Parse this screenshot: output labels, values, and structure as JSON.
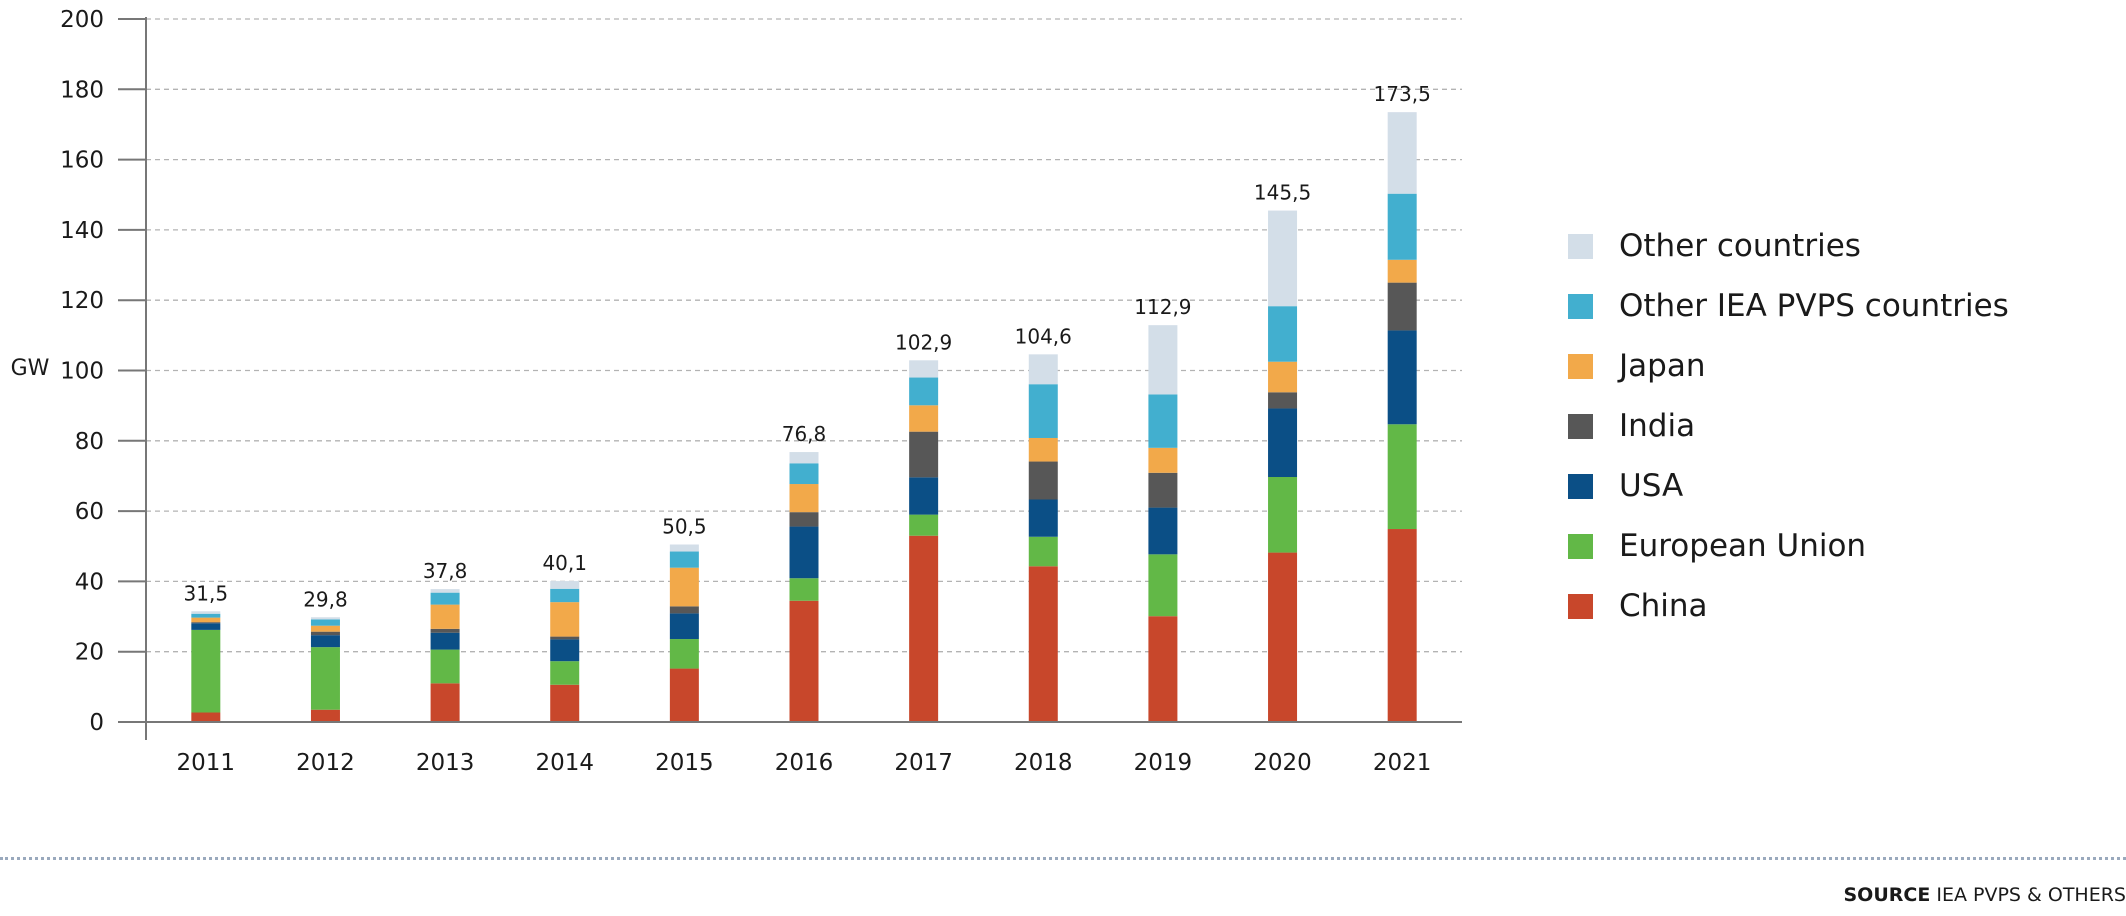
{
  "footer": {
    "source_key": "SOURCE",
    "source_value": "IEA PVPS & OTHERS"
  },
  "chart_data": {
    "type": "bar",
    "stacked": true,
    "ylabel": "GW",
    "ylim": [
      0,
      200
    ],
    "yticks": [
      0,
      20,
      40,
      60,
      80,
      100,
      120,
      140,
      160,
      180,
      200
    ],
    "grid": true,
    "legend_position": "right",
    "categories": [
      "2011",
      "2012",
      "2013",
      "2014",
      "2015",
      "2016",
      "2017",
      "2018",
      "2019",
      "2020",
      "2021"
    ],
    "totals": [
      "31,5",
      "29,8",
      "37,8",
      "40,1",
      "50,5",
      "76,8",
      "102,9",
      "104,6",
      "112,9",
      "145,5",
      "173,5"
    ],
    "series": [
      {
        "name": "China",
        "color": "#c8472b",
        "values": [
          2.7,
          3.5,
          11.0,
          10.6,
          15.2,
          34.5,
          53.0,
          44.3,
          30.1,
          48.2,
          54.9
        ]
      },
      {
        "name": "European Union",
        "color": "#62b847",
        "values": [
          23.5,
          17.8,
          9.6,
          6.7,
          8.4,
          6.4,
          6.0,
          8.4,
          17.6,
          21.5,
          29.8
        ]
      },
      {
        "name": "USA",
        "color": "#0b4f86",
        "values": [
          1.9,
          3.4,
          4.8,
          6.2,
          7.3,
          14.7,
          10.6,
          10.6,
          13.3,
          19.5,
          26.7
        ]
      },
      {
        "name": "India",
        "color": "#575757",
        "values": [
          0.3,
          1.0,
          1.1,
          0.8,
          2.0,
          4.1,
          13.0,
          10.8,
          9.9,
          4.6,
          13.6
        ]
      },
      {
        "name": "Japan",
        "color": "#f2a94a",
        "values": [
          1.3,
          1.7,
          6.9,
          9.8,
          11.0,
          8.0,
          7.5,
          6.7,
          7.1,
          8.7,
          6.5
        ]
      },
      {
        "name": "Other IEA PVPS countries",
        "color": "#42afcf",
        "values": [
          1.1,
          1.8,
          3.4,
          3.8,
          4.6,
          5.9,
          7.9,
          15.3,
          15.2,
          15.8,
          18.8
        ]
      },
      {
        "name": "Other countries",
        "color": "#d3dee8",
        "values": [
          0.7,
          0.6,
          1.0,
          2.2,
          2.0,
          3.2,
          4.9,
          8.5,
          19.7,
          27.2,
          23.2
        ]
      }
    ]
  }
}
